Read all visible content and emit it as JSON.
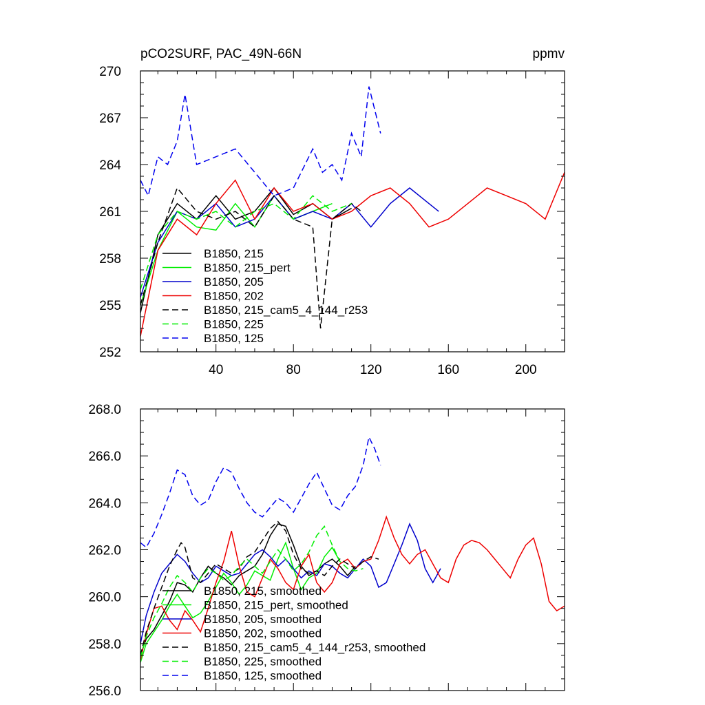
{
  "chart_data": [
    {
      "type": "line",
      "title": "pCO2SURF, PAC_49N-66N",
      "units": "ppmv",
      "xlim": [
        1,
        220
      ],
      "ylim": [
        252,
        270
      ],
      "x_ticks": [
        40,
        80,
        120,
        160,
        200
      ],
      "x_tick_labels": [
        "40",
        "80",
        "120",
        "160",
        "200"
      ],
      "y_ticks": [
        252,
        255,
        258,
        261,
        264,
        267,
        270
      ],
      "y_tick_labels": [
        "252",
        "255",
        "258",
        "261",
        "264",
        "267",
        "270"
      ],
      "legend": [
        "B1850, 215",
        "B1850, 215_pert",
        "B1850, 205",
        "B1850, 202",
        "B1850, 215_cam5_4_144_r253",
        "B1850, 225",
        "B1850, 125"
      ],
      "series": [
        {
          "name": "B1850, 215",
          "color": "#000000",
          "dash": "solid",
          "x": [
            1,
            10,
            20,
            30,
            40,
            50,
            60,
            70,
            80,
            90,
            100,
            110
          ],
          "y": [
            254.5,
            259.5,
            261.5,
            260.5,
            262.0,
            260.5,
            261.0,
            262.5,
            260.8,
            261.5,
            260.5,
            261.2
          ]
        },
        {
          "name": "B1850, 215_pert",
          "color": "#00ee00",
          "dash": "solid",
          "x": [
            1,
            10,
            20,
            30,
            40,
            50,
            60,
            70,
            80,
            90,
            100
          ],
          "y": [
            255.0,
            258.5,
            261.0,
            260.0,
            259.8,
            261.5,
            260.0,
            262.0,
            260.5,
            261.0,
            261.5
          ]
        },
        {
          "name": "B1850, 205",
          "color": "#0000cc",
          "dash": "solid",
          "x": [
            1,
            10,
            20,
            30,
            40,
            50,
            60,
            70,
            80,
            90,
            100,
            110,
            120,
            130,
            140,
            150,
            155
          ],
          "y": [
            255.5,
            259.0,
            261.0,
            260.5,
            261.5,
            260.0,
            260.5,
            262.0,
            260.5,
            261.0,
            260.5,
            261.5,
            260.0,
            261.5,
            262.5,
            261.5,
            261.0
          ]
        },
        {
          "name": "B1850, 202",
          "color": "#ee0000",
          "dash": "solid",
          "x": [
            1,
            10,
            20,
            30,
            40,
            50,
            60,
            70,
            80,
            90,
            100,
            110,
            120,
            130,
            140,
            150,
            160,
            170,
            180,
            190,
            200,
            210,
            220
          ],
          "y": [
            253.0,
            258.5,
            260.5,
            259.5,
            261.5,
            263.0,
            260.5,
            262.5,
            261.0,
            261.5,
            260.5,
            261.0,
            262.0,
            262.5,
            261.5,
            260.0,
            260.5,
            261.5,
            262.5,
            262.0,
            261.5,
            260.5,
            263.5
          ]
        },
        {
          "name": "B1850, 215_cam5_4_144_r253",
          "color": "#000000",
          "dash": "dashed",
          "x": [
            1,
            10,
            20,
            30,
            40,
            50,
            60,
            70,
            80,
            90,
            94,
            100,
            110,
            115
          ],
          "y": [
            255.0,
            259.0,
            262.5,
            261.0,
            260.5,
            261.0,
            260.0,
            262.0,
            260.5,
            260.0,
            253.5,
            260.5,
            261.5,
            261.0
          ]
        },
        {
          "name": "B1850, 225",
          "color": "#00ee00",
          "dash": "dashed",
          "x": [
            1,
            10,
            20,
            30,
            40,
            50,
            60,
            70,
            80,
            90,
            100,
            110
          ],
          "y": [
            256.0,
            259.5,
            261.0,
            260.5,
            261.0,
            260.0,
            261.0,
            261.5,
            260.5,
            262.0,
            261.0,
            261.5
          ]
        },
        {
          "name": "B1850, 125",
          "color": "#0000ee",
          "dash": "dashed",
          "x": [
            1,
            5,
            10,
            15,
            20,
            24,
            30,
            40,
            50,
            60,
            70,
            80,
            90,
            95,
            100,
            105,
            110,
            115,
            119,
            125
          ],
          "y": [
            263.0,
            262.0,
            264.5,
            264.0,
            265.5,
            268.5,
            264.0,
            264.5,
            265.0,
            263.5,
            262.0,
            262.5,
            265.0,
            263.5,
            264.0,
            263.0,
            266.0,
            264.5,
            269.0,
            266.0
          ]
        }
      ]
    },
    {
      "type": "line",
      "title": "",
      "xlim": [
        1,
        220
      ],
      "ylim": [
        256,
        268
      ],
      "x_ticks": [
        40,
        80,
        120,
        160,
        200
      ],
      "x_tick_labels": [],
      "y_ticks": [
        256,
        258,
        260,
        262,
        264,
        266,
        268
      ],
      "y_tick_labels": [
        "256.0",
        "258.0",
        "260.0",
        "262.0",
        "264.0",
        "266.0",
        "268.0"
      ],
      "legend": [
        "B1850, 215, smoothed",
        "B1850, 215_pert, smoothed",
        "B1850, 205, smoothed",
        "B1850, 202, smoothed",
        "B1850, 215_cam5_4_144_r253, smoothed",
        "B1850, 225, smoothed",
        "B1850, 125, smoothed"
      ],
      "series": [
        {
          "name": "B1850, 215, smoothed",
          "color": "#000000",
          "dash": "solid",
          "x": [
            1,
            4,
            8,
            12,
            16,
            20,
            24,
            28,
            32,
            36,
            40,
            44,
            48,
            52,
            56,
            60,
            64,
            68,
            72,
            76,
            80,
            84,
            88,
            92,
            96,
            100,
            104,
            108,
            112
          ],
          "y": [
            257.5,
            258.2,
            258.6,
            259.2,
            259.8,
            260.6,
            260.5,
            260.2,
            260.8,
            261.3,
            261.0,
            260.8,
            260.5,
            260.9,
            261.1,
            261.3,
            261.8,
            262.6,
            263.1,
            263.0,
            262.2,
            261.3,
            260.9,
            261.1,
            261.4,
            261.6,
            261.3,
            260.9,
            261.3
          ]
        },
        {
          "name": "B1850, 215_pert, smoothed",
          "color": "#00ee00",
          "dash": "solid",
          "x": [
            1,
            4,
            8,
            12,
            16,
            20,
            24,
            28,
            32,
            36,
            40,
            44,
            48,
            52,
            56,
            60,
            64,
            68,
            72,
            76,
            80,
            84,
            88,
            92,
            96,
            100,
            104
          ],
          "y": [
            257.2,
            258.0,
            258.5,
            259.0,
            259.6,
            260.1,
            259.6,
            259.1,
            259.3,
            259.8,
            260.4,
            261.0,
            260.6,
            260.1,
            260.5,
            261.1,
            260.9,
            260.7,
            261.6,
            262.3,
            261.2,
            260.3,
            260.8,
            261.0,
            261.7,
            262.1,
            261.5
          ]
        },
        {
          "name": "B1850, 205, smoothed",
          "color": "#0000cc",
          "dash": "solid",
          "x": [
            1,
            4,
            8,
            12,
            16,
            20,
            24,
            28,
            32,
            36,
            40,
            44,
            48,
            52,
            56,
            60,
            64,
            68,
            72,
            76,
            80,
            84,
            88,
            92,
            96,
            100,
            104,
            108,
            112,
            116,
            120,
            124,
            128,
            132,
            136,
            140,
            144,
            148,
            152,
            156
          ],
          "y": [
            258.0,
            259.2,
            260.2,
            261.0,
            261.4,
            261.8,
            261.5,
            261.0,
            260.6,
            260.8,
            261.3,
            261.1,
            260.9,
            261.0,
            261.4,
            261.8,
            262.0,
            261.7,
            261.3,
            261.6,
            261.2,
            260.8,
            261.1,
            260.9,
            261.4,
            261.3,
            261.0,
            260.8,
            261.2,
            261.6,
            261.3,
            260.4,
            260.6,
            261.4,
            262.2,
            263.1,
            262.4,
            261.2,
            260.6,
            261.2
          ]
        },
        {
          "name": "B1850, 202, smoothed",
          "color": "#ee0000",
          "dash": "solid",
          "x": [
            1,
            4,
            8,
            12,
            16,
            20,
            24,
            28,
            32,
            36,
            40,
            44,
            48,
            52,
            56,
            60,
            64,
            68,
            72,
            76,
            80,
            84,
            88,
            92,
            96,
            100,
            104,
            108,
            112,
            116,
            120,
            124,
            128,
            132,
            136,
            140,
            144,
            148,
            152,
            156,
            160,
            164,
            168,
            172,
            176,
            180,
            184,
            188,
            192,
            196,
            200,
            204,
            208,
            212,
            216,
            220
          ],
          "y": [
            257.3,
            258.4,
            259.5,
            259.6,
            259.0,
            258.6,
            259.4,
            259.0,
            258.5,
            259.5,
            260.6,
            261.5,
            262.8,
            261.3,
            260.2,
            260.0,
            260.8,
            261.6,
            261.2,
            260.6,
            260.3,
            261.3,
            261.8,
            260.6,
            260.2,
            260.6,
            261.4,
            261.6,
            261.2,
            261.5,
            261.6,
            262.4,
            263.4,
            262.5,
            261.8,
            261.4,
            261.8,
            262.0,
            261.4,
            260.8,
            260.6,
            261.6,
            262.2,
            262.4,
            262.3,
            262.0,
            261.6,
            261.2,
            260.8,
            261.6,
            262.2,
            262.5,
            261.4,
            259.8,
            259.4,
            259.6
          ]
        },
        {
          "name": "B1850, 215_cam5_4_144_r253, smoothed",
          "color": "#000000",
          "dash": "dashed",
          "x": [
            1,
            4,
            8,
            12,
            16,
            20,
            22,
            24,
            28,
            32,
            36,
            40,
            44,
            48,
            52,
            56,
            60,
            64,
            68,
            72,
            76,
            80,
            84,
            88,
            92,
            96,
            100,
            104,
            108,
            112,
            116,
            120,
            124
          ],
          "y": [
            257.5,
            258.5,
            259.5,
            260.4,
            261.3,
            262.0,
            262.3,
            262.1,
            260.8,
            260.6,
            261.0,
            261.4,
            261.2,
            261.0,
            261.2,
            261.7,
            261.9,
            262.4,
            262.9,
            263.2,
            262.8,
            261.8,
            261.2,
            261.0,
            261.1,
            260.9,
            261.3,
            261.6,
            261.4,
            261.2,
            261.5,
            261.7,
            261.6
          ]
        },
        {
          "name": "B1850, 225, smoothed",
          "color": "#00ee00",
          "dash": "dashed",
          "x": [
            1,
            4,
            8,
            12,
            16,
            20,
            24,
            28,
            32,
            36,
            40,
            44,
            48,
            52,
            56,
            60,
            64,
            68,
            72,
            76,
            80,
            84,
            88,
            92,
            96,
            100,
            104,
            108,
            112,
            116
          ],
          "y": [
            257.4,
            258.3,
            259.1,
            259.7,
            260.4,
            260.9,
            260.6,
            260.2,
            260.8,
            261.2,
            261.0,
            260.7,
            260.9,
            261.3,
            261.6,
            261.3,
            261.0,
            261.5,
            262.0,
            261.6,
            261.1,
            261.4,
            261.9,
            262.6,
            263.0,
            262.2,
            261.5,
            261.2,
            261.1,
            261.2
          ]
        },
        {
          "name": "B1850, 125, smoothed",
          "color": "#0000ee",
          "dash": "dashed",
          "x": [
            1,
            4,
            8,
            12,
            16,
            20,
            24,
            28,
            32,
            36,
            40,
            44,
            48,
            52,
            56,
            60,
            64,
            68,
            72,
            76,
            80,
            84,
            88,
            92,
            96,
            100,
            104,
            108,
            112,
            116,
            119,
            122,
            125
          ],
          "y": [
            262.3,
            262.1,
            262.7,
            263.5,
            264.4,
            265.4,
            265.2,
            264.3,
            263.9,
            264.1,
            264.9,
            265.5,
            265.3,
            264.6,
            264.0,
            263.6,
            263.4,
            263.8,
            264.2,
            264.0,
            263.6,
            264.2,
            264.8,
            265.3,
            264.6,
            263.9,
            263.7,
            264.3,
            264.7,
            265.6,
            266.8,
            266.3,
            265.6
          ]
        }
      ]
    }
  ]
}
